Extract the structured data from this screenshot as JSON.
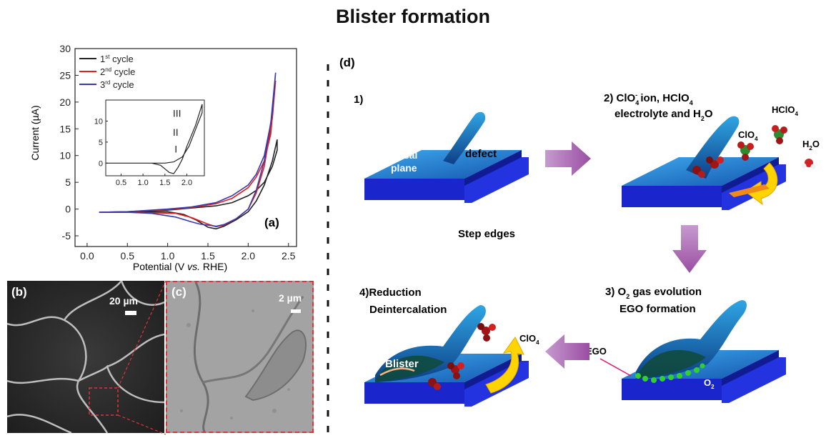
{
  "title": "Blister formation",
  "panel_labels": {
    "a": "(a)",
    "b": "(b)",
    "c": "(c)",
    "d": "(d)"
  },
  "scale_bars": {
    "b": "20 µm",
    "c": "2 µm"
  },
  "chart_data": {
    "type": "line",
    "xlabel_parts": {
      "pre": "Potential (V ",
      "italic": "vs.",
      "post": " RHE)"
    },
    "ylabel": "Current (µA)",
    "xlim": [
      -0.15,
      2.6
    ],
    "ylim": [
      -7,
      30
    ],
    "xticks": [
      "0.0",
      "0.5",
      "1.0",
      "1.5",
      "2.0",
      "2.5"
    ],
    "yticks": [
      "-5",
      "0",
      "5",
      "10",
      "15",
      "20",
      "25",
      "30"
    ],
    "legend": [
      {
        "base": "1",
        "sup": "st",
        "text": " cycle",
        "color": "#222222"
      },
      {
        "base": "2",
        "sup": "nd",
        "text": " cycle",
        "color": "#e0201c"
      },
      {
        "base": "3",
        "sup": "rd",
        "text": " cycle",
        "color": "#3a38b0"
      }
    ],
    "series": [
      {
        "color": "#222222",
        "forward": [
          [
            0.15,
            -0.6
          ],
          [
            0.5,
            -0.5
          ],
          [
            1.0,
            -0.2
          ],
          [
            1.3,
            0.2
          ],
          [
            1.6,
            0.6
          ],
          [
            1.8,
            1.2
          ],
          [
            2.0,
            2.5
          ],
          [
            2.1,
            3.5
          ],
          [
            2.2,
            5.0
          ],
          [
            2.3,
            8.0
          ],
          [
            2.36,
            11.0
          ]
        ],
        "reverse": [
          [
            2.36,
            13.0
          ],
          [
            2.3,
            9.0
          ],
          [
            2.2,
            4.5
          ],
          [
            2.1,
            1.5
          ],
          [
            2.0,
            -0.5
          ],
          [
            1.85,
            -2.0
          ],
          [
            1.7,
            -3.2
          ],
          [
            1.6,
            -3.7
          ],
          [
            1.5,
            -3.4
          ],
          [
            1.35,
            -2.0
          ],
          [
            1.2,
            -1.0
          ],
          [
            1.0,
            -0.5
          ],
          [
            0.5,
            -0.6
          ],
          [
            0.15,
            -0.6
          ]
        ]
      },
      {
        "color": "#e0201c",
        "forward": [
          [
            0.15,
            -0.6
          ],
          [
            0.5,
            -0.5
          ],
          [
            1.0,
            -0.1
          ],
          [
            1.3,
            0.3
          ],
          [
            1.6,
            1.0
          ],
          [
            1.8,
            2.0
          ],
          [
            2.0,
            4.0
          ],
          [
            2.1,
            6.0
          ],
          [
            2.2,
            9.0
          ],
          [
            2.28,
            14.0
          ],
          [
            2.34,
            24.0
          ]
        ],
        "reverse": [
          [
            2.34,
            24.0
          ],
          [
            2.3,
            17.0
          ],
          [
            2.2,
            8.0
          ],
          [
            2.1,
            3.0
          ],
          [
            2.0,
            0.0
          ],
          [
            1.85,
            -1.8
          ],
          [
            1.7,
            -3.0
          ],
          [
            1.6,
            -3.3
          ],
          [
            1.5,
            -2.8
          ],
          [
            1.4,
            -2.2
          ],
          [
            1.3,
            -1.6
          ],
          [
            1.1,
            -0.8
          ],
          [
            0.5,
            -0.6
          ],
          [
            0.15,
            -0.6
          ]
        ]
      },
      {
        "color": "#3a38b0",
        "forward": [
          [
            0.15,
            -0.6
          ],
          [
            0.5,
            -0.5
          ],
          [
            1.0,
            0.0
          ],
          [
            1.3,
            0.4
          ],
          [
            1.6,
            1.2
          ],
          [
            1.8,
            2.5
          ],
          [
            2.0,
            4.5
          ],
          [
            2.1,
            6.5
          ],
          [
            2.2,
            10.0
          ],
          [
            2.28,
            16.0
          ],
          [
            2.34,
            25.5
          ]
        ],
        "reverse": [
          [
            2.34,
            25.5
          ],
          [
            2.3,
            18.0
          ],
          [
            2.2,
            9.0
          ],
          [
            2.1,
            3.5
          ],
          [
            2.0,
            0.0
          ],
          [
            1.85,
            -1.8
          ],
          [
            1.7,
            -2.9
          ],
          [
            1.6,
            -3.2
          ],
          [
            1.5,
            -3.0
          ],
          [
            1.4,
            -2.8
          ],
          [
            1.3,
            -2.4
          ],
          [
            1.1,
            -1.5
          ],
          [
            0.8,
            -0.8
          ],
          [
            0.5,
            -0.6
          ],
          [
            0.15,
            -0.6
          ]
        ]
      }
    ],
    "inset": {
      "xticks": [
        "0.5",
        "1.0",
        "1.5",
        "2.0"
      ],
      "yticks": [
        "0",
        "5",
        "10"
      ],
      "xlim": [
        0.15,
        2.4
      ],
      "ylim": [
        -3,
        15
      ],
      "annotations": [
        "I",
        "II",
        "III"
      ],
      "forward": [
        [
          0.15,
          0
        ],
        [
          1.0,
          0
        ],
        [
          1.5,
          0
        ],
        [
          1.7,
          0.3
        ],
        [
          1.9,
          1.5
        ],
        [
          2.05,
          4.0
        ],
        [
          2.2,
          8.0
        ],
        [
          2.35,
          12.0
        ]
      ],
      "reverse": [
        [
          2.35,
          14.0
        ],
        [
          2.2,
          9.0
        ],
        [
          2.0,
          4.0
        ],
        [
          1.9,
          1.0
        ],
        [
          1.8,
          -1.0
        ],
        [
          1.7,
          -2.5
        ],
        [
          1.6,
          -2.2
        ],
        [
          1.4,
          -0.5
        ],
        [
          1.2,
          0
        ],
        [
          0.15,
          0
        ]
      ]
    }
  },
  "diagram": {
    "steps": {
      "s1": "1)",
      "s2_prefix": "2) ClO",
      "s2_suffix": " ion, HClO",
      "s2_line2_pre": "electrolyte and H",
      "s2_line2_post": "O",
      "s3_line1_pre": "3) O",
      "s3_line1_post": " gas evolution",
      "s3_line2": "EGO formation",
      "s4_line1": "4)Reduction",
      "s4_line2": "Deintercalation"
    },
    "labels": {
      "basal": "Basal",
      "plane": "plane",
      "defect": "defect",
      "step_edges": "Step edges",
      "clo4": "ClO",
      "hclo4": "HClO",
      "h2o_pre": "H",
      "h2o_post": "O",
      "ego": "EGO",
      "o2_pre": "O",
      "blister": "Blister",
      "clo4_b": "ClO",
      "sub4": "4",
      "sub2": "2",
      "sup_minus": "-"
    },
    "colors": {
      "arrow": "#a45bab",
      "top": "#1e6fc4",
      "block": "#1a2bd8",
      "yellow": "#ffd400"
    }
  }
}
